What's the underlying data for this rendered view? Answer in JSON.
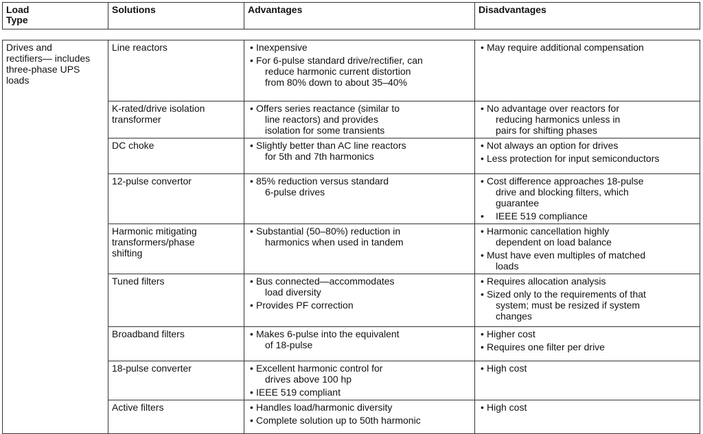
{
  "headers": [
    "Load\nType",
    "Solutions",
    "Advantages",
    "Disadvantages"
  ],
  "load_type": "Drives and\nrectifiers— includes\nthree-phase UPS\nloads",
  "rows": [
    {
      "solution": "Line reactors",
      "advantages": [
        {
          "t": "Inexpensive"
        },
        {
          "t": "For 6-pulse standard drive/rectifier, can\nreduce harmonic current distortion\nfrom 80% down to about 35–40%"
        }
      ],
      "disadvantages": [
        {
          "t": "May require additional compensation"
        }
      ]
    },
    {
      "solution": "K-rated/drive isolation\ntransformer",
      "advantages": [
        {
          "t": "Offers series reactance (similar to\nline reactors) and provides\nisolation for some transients"
        }
      ],
      "disadvantages": [
        {
          "t": "No advantage over reactors for\nreducing harmonics unless in\npairs for shifting phases"
        }
      ]
    },
    {
      "solution": "DC choke",
      "advantages": [
        {
          "t": "Slightly better than AC line reactors\nfor 5th and 7th harmonics"
        }
      ],
      "disadvantages": [
        {
          "t": "Not always an option for drives"
        },
        {
          "t": "Less protection for input semiconductors"
        }
      ]
    },
    {
      "solution": "12-pulse convertor",
      "advantages": [
        {
          "t": "85% reduction versus standard\n6-pulse drives"
        }
      ],
      "disadvantages": [
        {
          "t": "Cost difference approaches 18-pulse\ndrive and blocking filters, which\nguarantee"
        },
        {
          "t": "IEEE 519 compliance",
          "nobul": true
        }
      ]
    },
    {
      "solution": "Harmonic mitigating\ntransformers/phase\nshifting",
      "advantages": [
        {
          "t": "Substantial (50–80%) reduction in\nharmonics when used in tandem"
        }
      ],
      "disadvantages": [
        {
          "t": "Harmonic cancellation highly\ndependent on load balance"
        },
        {
          "t": "Must have even multiples of matched\nloads"
        }
      ]
    },
    {
      "solution": "Tuned filters",
      "advantages": [
        {
          "t": "Bus connected—accommodates\nload diversity"
        },
        {
          "t": "Provides PF correction"
        }
      ],
      "disadvantages": [
        {
          "t": "Requires allocation analysis"
        },
        {
          "t": "Sized only to the requirements of that\nsystem; must be resized if system\nchanges"
        }
      ]
    },
    {
      "solution": "Broadband filters",
      "advantages": [
        {
          "t": "Makes 6-pulse into the equivalent\nof 18-pulse"
        }
      ],
      "disadvantages": [
        {
          "t": "Higher cost"
        },
        {
          "t": "Requires one filter per drive"
        }
      ]
    },
    {
      "solution": "18-pulse converter",
      "advantages": [
        {
          "t": "Excellent harmonic control for\ndrives above 100 hp"
        },
        {
          "t": "IEEE 519 compliant"
        }
      ],
      "disadvantages": [
        {
          "t": "High cost"
        }
      ]
    },
    {
      "solution": "Active filters",
      "advantages": [
        {
          "t": "Handles load/harmonic diversity"
        },
        {
          "t": "Complete solution up to 50th harmonic"
        }
      ],
      "disadvantages": [
        {
          "t": "High cost"
        }
      ]
    }
  ]
}
